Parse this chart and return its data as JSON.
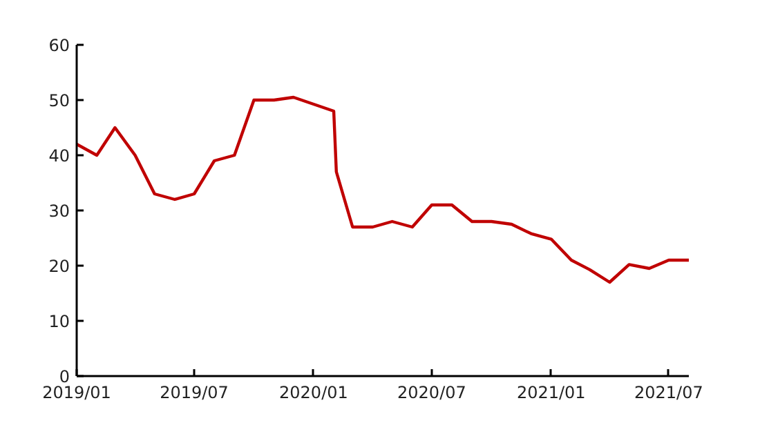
{
  "chart_data": {
    "type": "line",
    "x": [
      "2019-01-01",
      "2019-02-01",
      "2019-03-01",
      "2019-04-01",
      "2019-05-01",
      "2019-06-01",
      "2019-07-01",
      "2019-08-01",
      "2019-09-01",
      "2019-10-01",
      "2019-11-01",
      "2019-12-01",
      "2020-02-01",
      "2020-02-05",
      "2020-03-01",
      "2020-04-01",
      "2020-05-01",
      "2020-06-01",
      "2020-07-01",
      "2020-08-01",
      "2020-09-01",
      "2020-10-01",
      "2020-11-01",
      "2020-12-01",
      "2021-01-01",
      "2021-02-01",
      "2021-03-01",
      "2021-04-01",
      "2021-05-01",
      "2021-06-01",
      "2021-07-01",
      "2021-08-01"
    ],
    "series": [
      {
        "color": "#c00000",
        "values": [
          42,
          40,
          45,
          40,
          33,
          32,
          33,
          39,
          40,
          50,
          50,
          50.5,
          48,
          37,
          27,
          27,
          28,
          27,
          31,
          31,
          28,
          28,
          27.5,
          25.8,
          24.8,
          21,
          19.3,
          17,
          20.2,
          19.5,
          21,
          21
        ]
      }
    ],
    "xlim": [
      "2019-01-01",
      "2021-08-01"
    ],
    "xticks": [
      {
        "value": "2019-01-01",
        "label": "2019/01"
      },
      {
        "value": "2019-07-01",
        "label": "2019/07"
      },
      {
        "value": "2020-01-01",
        "label": "2020/01"
      },
      {
        "value": "2020-07-01",
        "label": "2020/07"
      },
      {
        "value": "2021-01-01",
        "label": "2021/01"
      },
      {
        "value": "2021-07-01",
        "label": "2021/07"
      }
    ],
    "ylim": [
      0,
      60
    ],
    "yticks": [
      0,
      10,
      20,
      30,
      40,
      50,
      60
    ],
    "line_style": "solid"
  }
}
